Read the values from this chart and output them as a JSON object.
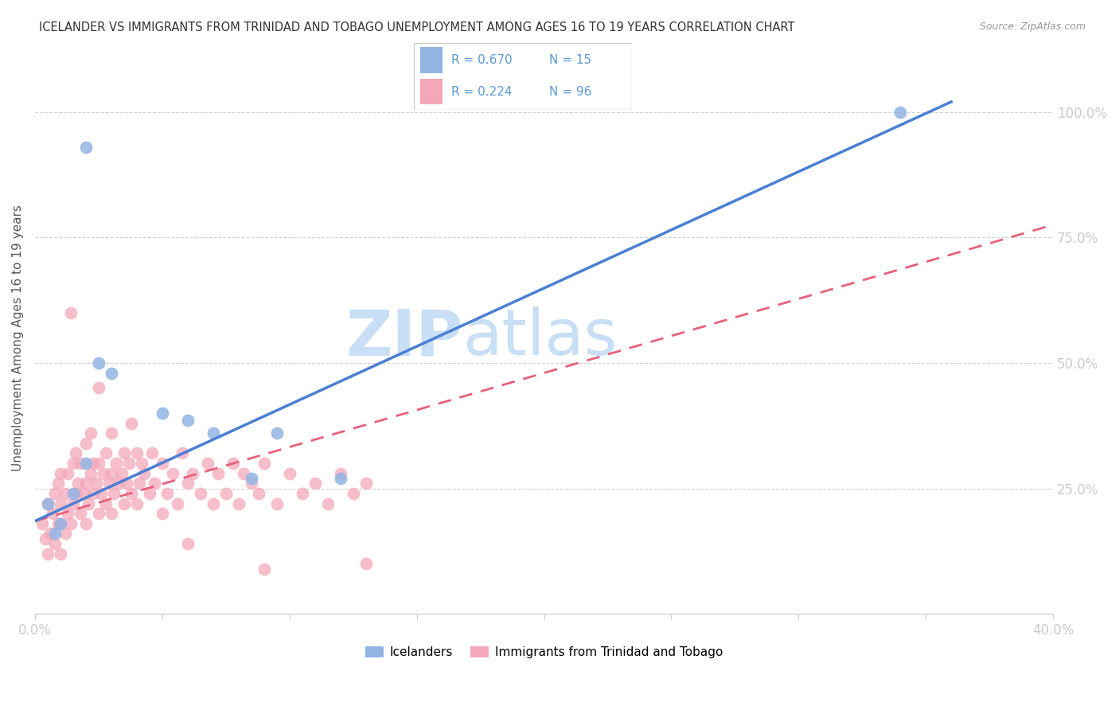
{
  "title": "ICELANDER VS IMMIGRANTS FROM TRINIDAD AND TOBAGO UNEMPLOYMENT AMONG AGES 16 TO 19 YEARS CORRELATION CHART",
  "source": "Source: ZipAtlas.com",
  "ylabel": "Unemployment Among Ages 16 to 19 years",
  "xlim": [
    0.0,
    0.4
  ],
  "ylim": [
    0.0,
    1.1
  ],
  "xticks": [
    0.0,
    0.05,
    0.1,
    0.15,
    0.2,
    0.25,
    0.3,
    0.35,
    0.4
  ],
  "xticklabels": [
    "0.0%",
    "",
    "",
    "",
    "",
    "",
    "",
    "",
    "40.0%"
  ],
  "ytick_positions": [
    0.0,
    0.25,
    0.5,
    0.75,
    1.0
  ],
  "yticklabels": [
    "",
    "25.0%",
    "50.0%",
    "75.0%",
    "100.0%"
  ],
  "blue_color": "#92b4e3",
  "pink_color": "#f4a7b9",
  "blue_line_color": "#4a7fd4",
  "pink_line_color": "#e8607a",
  "R_blue": 0.67,
  "N_blue": 15,
  "R_pink": 0.224,
  "N_pink": 96,
  "watermark": "ZIPatlas",
  "watermark_color": "#c8dff5",
  "blue_line_x": [
    0.0,
    0.36
  ],
  "blue_line_y": [
    0.185,
    1.02
  ],
  "pink_line_x": [
    0.0,
    0.4
  ],
  "pink_line_y": [
    0.185,
    0.775
  ],
  "icelanders_x": [
    0.02,
    0.025,
    0.03,
    0.05,
    0.06,
    0.07,
    0.085,
    0.095,
    0.12,
    0.005,
    0.008,
    0.01,
    0.015,
    0.02,
    0.34
  ],
  "icelanders_y": [
    0.93,
    0.5,
    0.48,
    0.4,
    0.385,
    0.36,
    0.27,
    0.36,
    0.27,
    0.22,
    0.16,
    0.18,
    0.24,
    0.3,
    1.0
  ],
  "trinidad_x": [
    0.003,
    0.004,
    0.005,
    0.005,
    0.006,
    0.007,
    0.008,
    0.008,
    0.009,
    0.009,
    0.01,
    0.01,
    0.01,
    0.01,
    0.012,
    0.012,
    0.013,
    0.013,
    0.014,
    0.015,
    0.015,
    0.016,
    0.016,
    0.017,
    0.018,
    0.018,
    0.019,
    0.02,
    0.02,
    0.02,
    0.021,
    0.022,
    0.022,
    0.023,
    0.023,
    0.024,
    0.025,
    0.025,
    0.026,
    0.027,
    0.028,
    0.028,
    0.029,
    0.03,
    0.03,
    0.03,
    0.031,
    0.032,
    0.033,
    0.034,
    0.035,
    0.035,
    0.036,
    0.037,
    0.038,
    0.04,
    0.04,
    0.041,
    0.042,
    0.043,
    0.045,
    0.046,
    0.047,
    0.05,
    0.05,
    0.052,
    0.054,
    0.056,
    0.058,
    0.06,
    0.062,
    0.065,
    0.068,
    0.07,
    0.072,
    0.075,
    0.078,
    0.08,
    0.082,
    0.085,
    0.088,
    0.09,
    0.095,
    0.1,
    0.105,
    0.11,
    0.115,
    0.12,
    0.125,
    0.13,
    0.014,
    0.025,
    0.038,
    0.06,
    0.09,
    0.13
  ],
  "trinidad_y": [
    0.18,
    0.15,
    0.12,
    0.22,
    0.16,
    0.2,
    0.14,
    0.24,
    0.18,
    0.26,
    0.12,
    0.18,
    0.22,
    0.28,
    0.16,
    0.24,
    0.2,
    0.28,
    0.18,
    0.22,
    0.3,
    0.24,
    0.32,
    0.26,
    0.2,
    0.3,
    0.24,
    0.18,
    0.26,
    0.34,
    0.22,
    0.28,
    0.36,
    0.24,
    0.3,
    0.26,
    0.2,
    0.3,
    0.24,
    0.28,
    0.22,
    0.32,
    0.26,
    0.2,
    0.28,
    0.36,
    0.24,
    0.3,
    0.26,
    0.28,
    0.22,
    0.32,
    0.26,
    0.3,
    0.24,
    0.22,
    0.32,
    0.26,
    0.3,
    0.28,
    0.24,
    0.32,
    0.26,
    0.2,
    0.3,
    0.24,
    0.28,
    0.22,
    0.32,
    0.26,
    0.28,
    0.24,
    0.3,
    0.22,
    0.28,
    0.24,
    0.3,
    0.22,
    0.28,
    0.26,
    0.24,
    0.3,
    0.22,
    0.28,
    0.24,
    0.26,
    0.22,
    0.28,
    0.24,
    0.26,
    0.6,
    0.45,
    0.38,
    0.14,
    0.09,
    0.1
  ]
}
